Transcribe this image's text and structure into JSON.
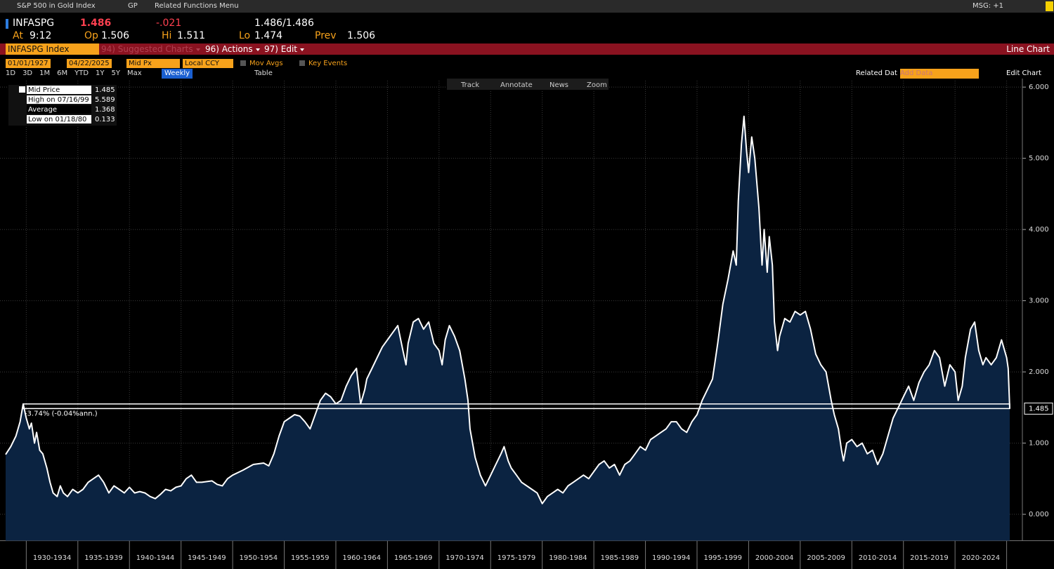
{
  "toolbar": {
    "title": "S&P 500 in Gold Index",
    "function": "GP",
    "menu": "Related Functions Menu",
    "msg": "MSG: +1"
  },
  "quote": {
    "ticker": "INFASPG",
    "last": "1.486",
    "change": "-.021",
    "bid_ask": "1.486/1.486",
    "time_label": "At",
    "time": "9:12",
    "open_label": "Op",
    "open": "1.506",
    "high_label": "Hi",
    "high": "1.511",
    "low_label": "Lo",
    "low": "1.474",
    "prev_label": "Prev",
    "prev": "1.506"
  },
  "menu": {
    "security": "INFASPG Index",
    "suggested": "94) Suggested Charts",
    "actions": "96) Actions",
    "edit": "97) Edit",
    "chart_type": "Line Chart"
  },
  "controls": {
    "start": "01/01/1927",
    "end": "04/22/2025",
    "field": "Mid Px",
    "currency": "Local CCY",
    "mov_avgs": "Mov Avgs",
    "key_events": "Key Events",
    "periods": [
      "1D",
      "3D",
      "1M",
      "6M",
      "YTD",
      "1Y",
      "5Y",
      "Max"
    ],
    "frequency": "Weekly",
    "table": "Table",
    "related": "Related Dat",
    "add_data": "Add Data",
    "edit_chart": "Edit Chart",
    "tools": [
      "Track",
      "Annotate",
      "News",
      "Zoom"
    ]
  },
  "chart_data": {
    "type": "line",
    "color": "#ffffff",
    "area_color": "#0b2341",
    "legend": [
      {
        "label": "Mid Price",
        "value": 1.485
      },
      {
        "label": "High on 07/16/99",
        "value": 5.589
      },
      {
        "label": "Average",
        "value": 1.368
      },
      {
        "label": "Low on 01/18/80",
        "value": 0.133
      }
    ],
    "annotation": "-3.74% (-0.04%ann.)",
    "last_label": "1.485",
    "categories": [
      "1930-1934",
      "1935-1939",
      "1940-1944",
      "1945-1949",
      "1950-1954",
      "1955-1959",
      "1960-1964",
      "1965-1969",
      "1970-1974",
      "1975-1979",
      "1980-1984",
      "1985-1989",
      "1990-1994",
      "1995-1999",
      "2000-2004",
      "2005-2009",
      "2010-2014",
      "2015-2019",
      "2020-2024"
    ],
    "xticks": [
      1930,
      1935,
      1940,
      1945,
      1950,
      1955,
      1960,
      1965,
      1970,
      1975,
      1980,
      1985,
      1990,
      1995,
      2000,
      2005,
      2010,
      2015,
      2020,
      2025
    ],
    "xlim": [
      1928,
      2025.3
    ],
    "ylim": [
      -0.37,
      6.09
    ],
    "yticks": [
      {
        "value": 0,
        "label": "0.000"
      },
      {
        "value": 1,
        "label": "1.000"
      },
      {
        "value": 2,
        "label": "2.000"
      },
      {
        "value": 3,
        "label": "3.000"
      },
      {
        "value": 4,
        "label": "4.000"
      },
      {
        "value": 5,
        "label": "5.000"
      },
      {
        "value": 6,
        "label": "6.000"
      }
    ],
    "grid": true,
    "x": [
      1928.0,
      1928.5,
      1929.0,
      1929.4,
      1929.7,
      1930.0,
      1930.3,
      1930.5,
      1930.8,
      1931.0,
      1931.3,
      1931.6,
      1932.0,
      1932.3,
      1932.6,
      1933.0,
      1933.3,
      1933.6,
      1934.0,
      1934.5,
      1935.0,
      1935.5,
      1936.0,
      1936.5,
      1937.0,
      1937.5,
      1938.0,
      1938.5,
      1939.0,
      1939.5,
      1940.0,
      1940.5,
      1941.0,
      1941.5,
      1942.0,
      1942.5,
      1943.0,
      1943.5,
      1944.0,
      1944.5,
      1945.0,
      1945.5,
      1946.0,
      1946.5,
      1947.0,
      1948.0,
      1948.5,
      1949.0,
      1949.5,
      1950.0,
      1951.0,
      1952.0,
      1953.0,
      1953.5,
      1954.0,
      1954.5,
      1955.0,
      1955.5,
      1956.0,
      1956.5,
      1957.0,
      1957.5,
      1958.0,
      1958.5,
      1959.0,
      1959.5,
      1960.0,
      1960.5,
      1961.0,
      1961.5,
      1962.0,
      1962.4,
      1962.8,
      1963.0,
      1963.5,
      1964.0,
      1964.5,
      1965.0,
      1965.5,
      1966.0,
      1966.5,
      1966.8,
      1967.0,
      1967.5,
      1968.0,
      1968.5,
      1969.0,
      1969.5,
      1970.0,
      1970.3,
      1970.6,
      1971.0,
      1971.5,
      1972.0,
      1972.5,
      1972.8,
      1973.0,
      1973.5,
      1974.0,
      1974.5,
      1975.0,
      1975.5,
      1976.0,
      1976.3,
      1976.7,
      1977.0,
      1977.5,
      1978.0,
      1978.5,
      1979.0,
      1979.5,
      1980.0,
      1980.5,
      1981.0,
      1981.5,
      1982.0,
      1982.5,
      1983.0,
      1983.5,
      1984.0,
      1984.5,
      1985.0,
      1985.5,
      1986.0,
      1986.5,
      1987.0,
      1987.5,
      1988.0,
      1988.5,
      1989.0,
      1989.5,
      1990.0,
      1990.5,
      1991.0,
      1991.5,
      1992.0,
      1992.5,
      1993.0,
      1993.5,
      1994.0,
      1994.5,
      1995.0,
      1995.5,
      1996.0,
      1996.5,
      1997.0,
      1997.5,
      1998.0,
      1998.5,
      1998.8,
      1999.0,
      1999.3,
      1999.55,
      1999.8,
      2000.0,
      2000.3,
      2000.6,
      2001.0,
      2001.3,
      2001.5,
      2001.8,
      2002.0,
      2002.3,
      2002.5,
      2002.8,
      2003.0,
      2003.5,
      2004.0,
      2004.5,
      2005.0,
      2005.5,
      2006.0,
      2006.5,
      2007.0,
      2007.5,
      2008.0,
      2008.3,
      2008.7,
      2009.0,
      2009.2,
      2009.5,
      2010.0,
      2010.5,
      2011.0,
      2011.5,
      2012.0,
      2012.5,
      2013.0,
      2013.5,
      2014.0,
      2014.5,
      2015.0,
      2015.5,
      2016.0,
      2016.5,
      2017.0,
      2017.5,
      2018.0,
      2018.5,
      2019.0,
      2019.5,
      2020.0,
      2020.3,
      2020.7,
      2021.0,
      2021.5,
      2021.9,
      2022.3,
      2022.7,
      2023.0,
      2023.5,
      2024.0,
      2024.5,
      2025.0,
      2025.15,
      2025.3
    ],
    "values": [
      0.84,
      0.95,
      1.1,
      1.3,
      1.55,
      1.35,
      1.2,
      1.28,
      1.0,
      1.15,
      0.9,
      0.85,
      0.65,
      0.45,
      0.3,
      0.25,
      0.4,
      0.3,
      0.25,
      0.35,
      0.3,
      0.35,
      0.45,
      0.5,
      0.55,
      0.45,
      0.3,
      0.4,
      0.35,
      0.3,
      0.38,
      0.3,
      0.32,
      0.3,
      0.25,
      0.22,
      0.28,
      0.35,
      0.33,
      0.38,
      0.4,
      0.5,
      0.55,
      0.45,
      0.45,
      0.47,
      0.42,
      0.4,
      0.5,
      0.55,
      0.62,
      0.7,
      0.72,
      0.68,
      0.85,
      1.1,
      1.3,
      1.35,
      1.4,
      1.38,
      1.3,
      1.2,
      1.4,
      1.6,
      1.7,
      1.65,
      1.55,
      1.6,
      1.8,
      1.95,
      2.05,
      1.55,
      1.75,
      1.9,
      2.05,
      2.2,
      2.35,
      2.45,
      2.55,
      2.65,
      2.3,
      2.1,
      2.4,
      2.7,
      2.75,
      2.6,
      2.7,
      2.4,
      2.3,
      2.1,
      2.45,
      2.65,
      2.5,
      2.3,
      1.9,
      1.6,
      1.2,
      0.8,
      0.55,
      0.4,
      0.55,
      0.7,
      0.85,
      0.95,
      0.75,
      0.65,
      0.55,
      0.45,
      0.4,
      0.35,
      0.3,
      0.15,
      0.25,
      0.3,
      0.35,
      0.3,
      0.4,
      0.45,
      0.5,
      0.55,
      0.5,
      0.6,
      0.7,
      0.75,
      0.65,
      0.7,
      0.55,
      0.7,
      0.75,
      0.85,
      0.95,
      0.9,
      1.05,
      1.1,
      1.15,
      1.2,
      1.3,
      1.3,
      1.2,
      1.15,
      1.3,
      1.4,
      1.6,
      1.75,
      1.9,
      2.4,
      2.95,
      3.3,
      3.7,
      3.5,
      4.4,
      5.2,
      5.589,
      5.1,
      4.8,
      5.3,
      5.0,
      4.3,
      3.5,
      4.0,
      3.4,
      3.9,
      3.5,
      2.7,
      2.3,
      2.5,
      2.75,
      2.7,
      2.85,
      2.8,
      2.85,
      2.6,
      2.25,
      2.1,
      2.0,
      1.6,
      1.4,
      1.2,
      0.9,
      0.75,
      1.0,
      1.05,
      0.95,
      1.0,
      0.85,
      0.9,
      0.7,
      0.85,
      1.1,
      1.35,
      1.5,
      1.65,
      1.8,
      1.6,
      1.85,
      2.0,
      2.1,
      2.3,
      2.2,
      1.8,
      2.1,
      2.0,
      1.6,
      1.8,
      2.2,
      2.6,
      2.7,
      2.3,
      2.1,
      2.2,
      2.1,
      2.2,
      2.45,
      2.2,
      2.05,
      1.485
    ]
  }
}
